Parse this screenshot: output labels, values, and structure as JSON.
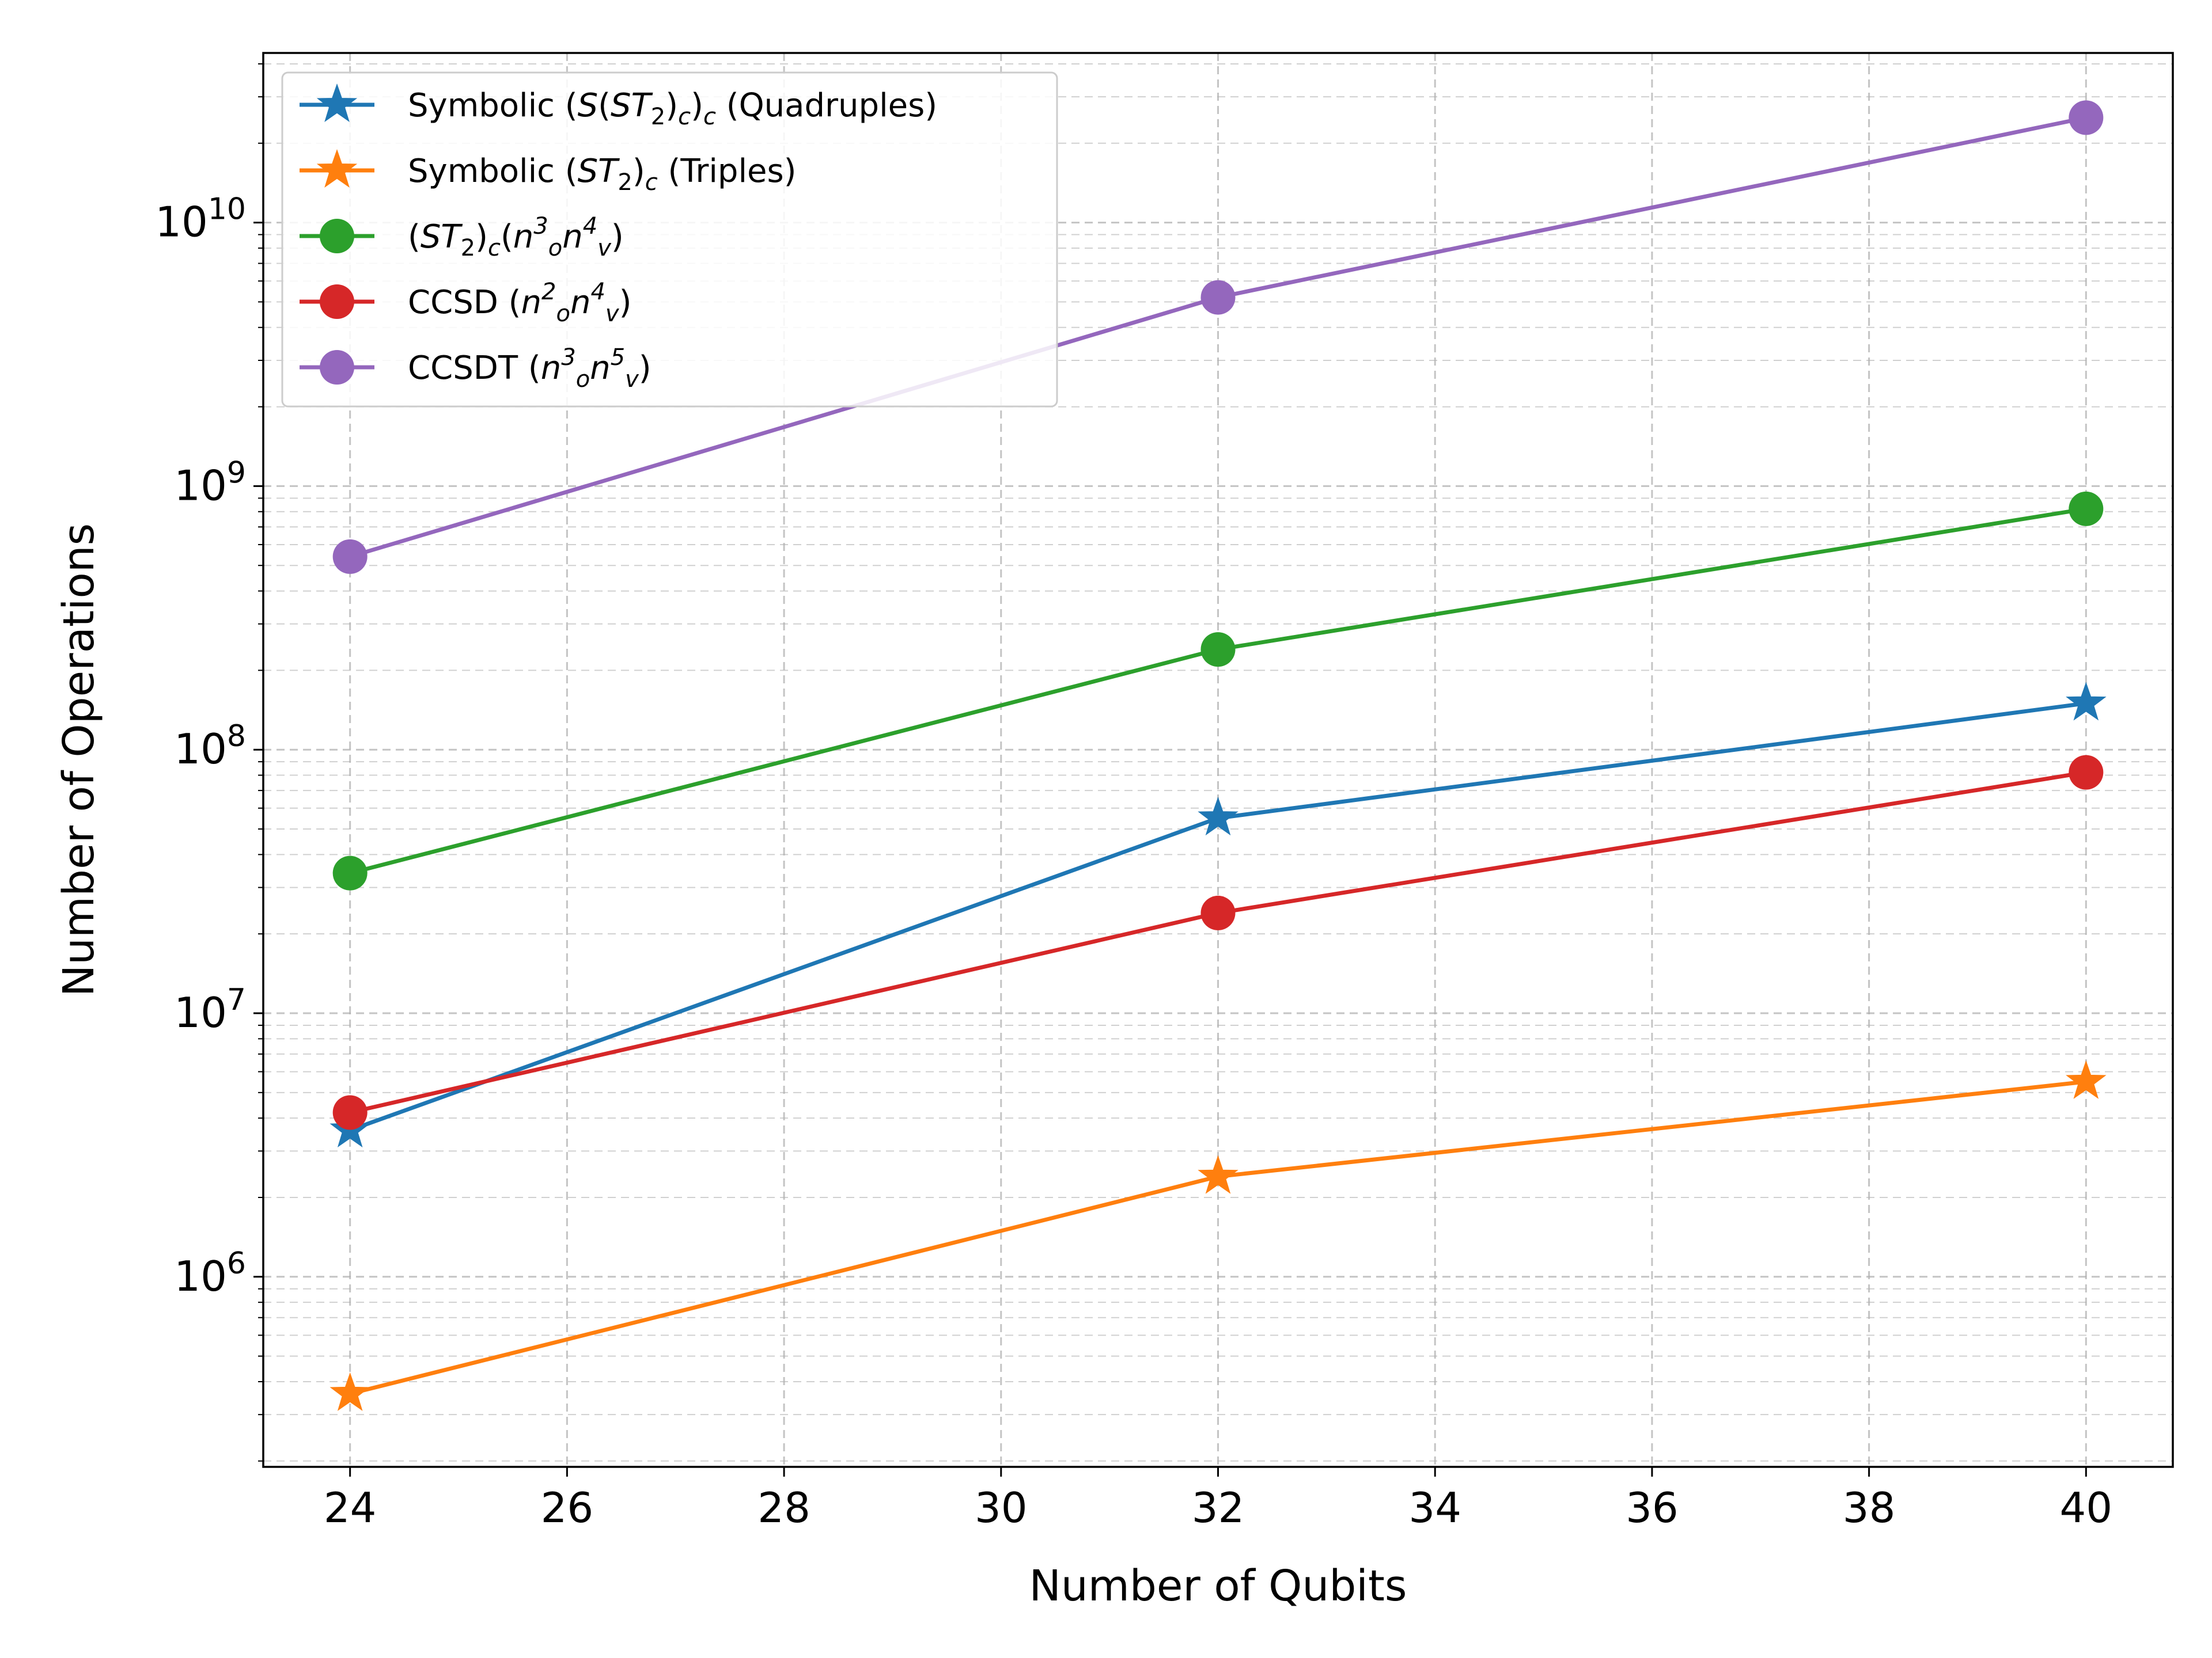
{
  "chart_data": {
    "type": "line",
    "title": "",
    "xlabel": "Number of Qubits",
    "ylabel": "Number of Operations",
    "yscale": "log",
    "x": [
      24,
      32,
      40
    ],
    "xlim": [
      23.2,
      40.8
    ],
    "ylim": [
      190000,
      44000000000
    ],
    "grid": true,
    "legend_position": "upper-left",
    "x_ticks": [
      24,
      26,
      28,
      30,
      32,
      34,
      36,
      38,
      40
    ],
    "y_ticks": [
      {
        "value": 1000000,
        "base": "10",
        "exp": "6"
      },
      {
        "value": 10000000,
        "base": "10",
        "exp": "7"
      },
      {
        "value": 100000000,
        "base": "10",
        "exp": "8"
      },
      {
        "value": 1000000000,
        "base": "10",
        "exp": "9"
      },
      {
        "value": 10000000000,
        "base": "10",
        "exp": "10"
      }
    ],
    "series": [
      {
        "name": "Symbolic (S(ST2)c)c (Quadruples)",
        "color": "#1f77b4",
        "marker": "star",
        "values": [
          3600000,
          55000000,
          150000000
        ],
        "legend_parts": [
          [
            "Symbolic (",
            "n"
          ],
          [
            "S",
            "i"
          ],
          [
            "(",
            "n"
          ],
          [
            "ST",
            "i"
          ],
          [
            "2",
            "sub"
          ],
          [
            ")",
            "n"
          ],
          [
            "c",
            "isub"
          ],
          [
            ")",
            "n"
          ],
          [
            "c",
            "isub"
          ],
          [
            " (Quadruples)",
            "n"
          ]
        ]
      },
      {
        "name": "Symbolic (ST2)c (Triples)",
        "color": "#ff7f0e",
        "marker": "star",
        "values": [
          360000,
          2400000,
          5500000
        ],
        "legend_parts": [
          [
            "Symbolic (",
            "n"
          ],
          [
            "ST",
            "i"
          ],
          [
            "2",
            "sub"
          ],
          [
            ")",
            "n"
          ],
          [
            "c",
            "isub"
          ],
          [
            " (Triples)",
            "n"
          ]
        ]
      },
      {
        "name": "(ST2)c(no3nv4)",
        "color": "#2ca02c",
        "marker": "circle",
        "values": [
          34000000,
          240000000,
          820000000
        ],
        "legend_parts": [
          [
            "(",
            "n"
          ],
          [
            "ST",
            "i"
          ],
          [
            "2",
            "sub"
          ],
          [
            ")",
            "n"
          ],
          [
            "c",
            "isub"
          ],
          [
            "(",
            "n"
          ],
          [
            "n",
            "i"
          ],
          [
            "3",
            "isup"
          ],
          [
            "o",
            "isub"
          ],
          [
            "n",
            "i"
          ],
          [
            "4",
            "isup"
          ],
          [
            "v",
            "isub"
          ],
          [
            ")",
            "n"
          ]
        ]
      },
      {
        "name": "CCSD (no2nv4)",
        "color": "#d62728",
        "marker": "circle",
        "values": [
          4200000,
          24000000,
          82000000
        ],
        "legend_parts": [
          [
            "CCSD (",
            "n"
          ],
          [
            "n",
            "i"
          ],
          [
            "2",
            "isup"
          ],
          [
            "o",
            "isub"
          ],
          [
            "n",
            "i"
          ],
          [
            "4",
            "isup"
          ],
          [
            "v",
            "isub"
          ],
          [
            ")",
            "n"
          ]
        ]
      },
      {
        "name": "CCSDT (no3nv5)",
        "color": "#9467bd",
        "marker": "circle",
        "values": [
          540000000,
          5200000000,
          25000000000
        ],
        "legend_parts": [
          [
            "CCSDT (",
            "n"
          ],
          [
            "n",
            "i"
          ],
          [
            "3",
            "isup"
          ],
          [
            "o",
            "isub"
          ],
          [
            "n",
            "i"
          ],
          [
            "5",
            "isup"
          ],
          [
            "v",
            "isub"
          ],
          [
            ")",
            "n"
          ]
        ]
      }
    ]
  }
}
